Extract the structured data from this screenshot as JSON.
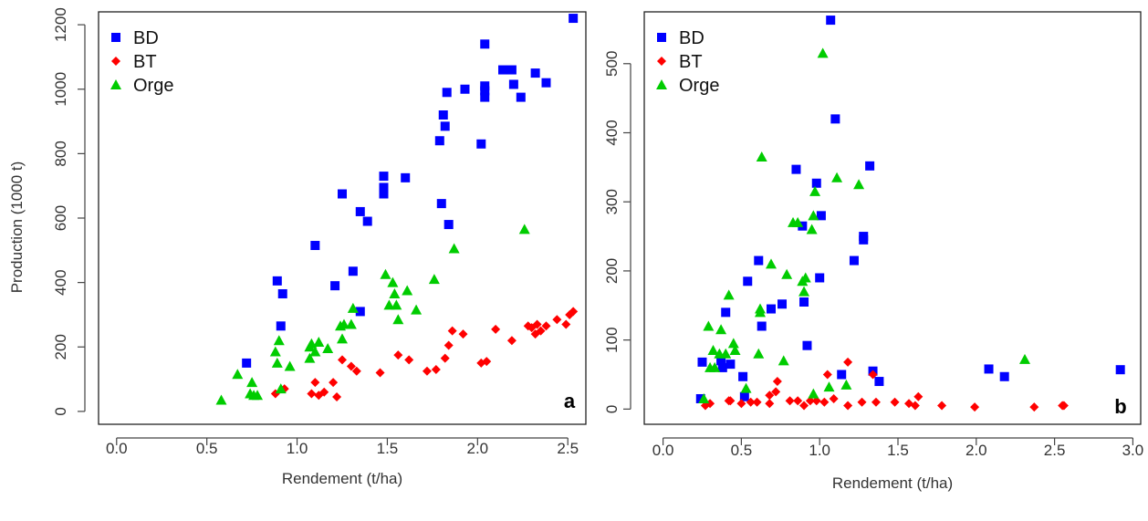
{
  "colors": {
    "BD": "#0000ff",
    "BT": "#ff0000",
    "Orge": "#00cc00"
  },
  "chart_data": [
    {
      "type": "scatter",
      "panel_label": "a",
      "xlabel": "Rendement (t/ha)",
      "ylabel": "Production (1000 t)",
      "xlim": [
        -0.1,
        2.6
      ],
      "ylim": [
        -40,
        1240
      ],
      "xticks": [
        0.0,
        0.5,
        1.0,
        1.5,
        2.0,
        2.5
      ],
      "xtick_labels": [
        "0.0",
        "0.5",
        "1.0",
        "1.5",
        "2.0",
        "2.5"
      ],
      "yticks": [
        0,
        200,
        400,
        600,
        800,
        1000,
        1200
      ],
      "ytick_labels": [
        "0",
        "200",
        "400",
        "600",
        "800",
        "1000",
        "1200"
      ],
      "legend_position": "top-left",
      "grid": false,
      "series": [
        {
          "name": "BD",
          "marker": "square",
          "points": [
            [
              0.72,
              150
            ],
            [
              0.89,
              405
            ],
            [
              0.91,
              265
            ],
            [
              0.92,
              365
            ],
            [
              1.1,
              515
            ],
            [
              1.21,
              390
            ],
            [
              1.25,
              675
            ],
            [
              1.31,
              435
            ],
            [
              1.35,
              620
            ],
            [
              1.35,
              310
            ],
            [
              1.39,
              590
            ],
            [
              1.48,
              730
            ],
            [
              1.48,
              695
            ],
            [
              1.48,
              675
            ],
            [
              1.6,
              725
            ],
            [
              1.79,
              840
            ],
            [
              1.8,
              645
            ],
            [
              1.81,
              920
            ],
            [
              1.82,
              885
            ],
            [
              1.83,
              990
            ],
            [
              1.84,
              580
            ],
            [
              1.93,
              1000
            ],
            [
              2.02,
              830
            ],
            [
              2.04,
              1140
            ],
            [
              2.04,
              1010
            ],
            [
              2.04,
              995
            ],
            [
              2.04,
              975
            ],
            [
              2.14,
              1060
            ],
            [
              2.19,
              1060
            ],
            [
              2.2,
              1015
            ],
            [
              2.24,
              975
            ],
            [
              2.32,
              1050
            ],
            [
              2.38,
              1020
            ],
            [
              2.53,
              1220
            ]
          ]
        },
        {
          "name": "BT",
          "marker": "diamond",
          "points": [
            [
              0.88,
              55
            ],
            [
              0.93,
              70
            ],
            [
              1.08,
              55
            ],
            [
              1.1,
              90
            ],
            [
              1.12,
              50
            ],
            [
              1.15,
              60
            ],
            [
              1.2,
              90
            ],
            [
              1.22,
              45
            ],
            [
              1.25,
              160
            ],
            [
              1.3,
              140
            ],
            [
              1.33,
              125
            ],
            [
              1.46,
              120
            ],
            [
              1.56,
              175
            ],
            [
              1.62,
              160
            ],
            [
              1.72,
              125
            ],
            [
              1.77,
              130
            ],
            [
              1.82,
              165
            ],
            [
              1.84,
              205
            ],
            [
              1.86,
              250
            ],
            [
              1.92,
              240
            ],
            [
              2.02,
              150
            ],
            [
              2.05,
              155
            ],
            [
              2.1,
              255
            ],
            [
              2.19,
              220
            ],
            [
              2.28,
              265
            ],
            [
              2.3,
              260
            ],
            [
              2.32,
              240
            ],
            [
              2.33,
              270
            ],
            [
              2.35,
              250
            ],
            [
              2.38,
              265
            ],
            [
              2.44,
              285
            ],
            [
              2.49,
              270
            ],
            [
              2.51,
              300
            ],
            [
              2.53,
              310
            ]
          ]
        },
        {
          "name": "Orge",
          "marker": "triangle",
          "points": [
            [
              0.58,
              35
            ],
            [
              0.67,
              115
            ],
            [
              0.74,
              55
            ],
            [
              0.75,
              90
            ],
            [
              0.76,
              50
            ],
            [
              0.78,
              50
            ],
            [
              0.88,
              185
            ],
            [
              0.89,
              150
            ],
            [
              0.9,
              220
            ],
            [
              0.91,
              70
            ],
            [
              0.96,
              140
            ],
            [
              1.07,
              200
            ],
            [
              1.07,
              165
            ],
            [
              1.08,
              210
            ],
            [
              1.1,
              185
            ],
            [
              1.12,
              215
            ],
            [
              1.17,
              195
            ],
            [
              1.24,
              265
            ],
            [
              1.25,
              225
            ],
            [
              1.26,
              270
            ],
            [
              1.3,
              270
            ],
            [
              1.31,
              320
            ],
            [
              1.49,
              425
            ],
            [
              1.51,
              330
            ],
            [
              1.53,
              400
            ],
            [
              1.54,
              365
            ],
            [
              1.55,
              330
            ],
            [
              1.56,
              285
            ],
            [
              1.61,
              375
            ],
            [
              1.66,
              315
            ],
            [
              1.76,
              410
            ],
            [
              1.87,
              505
            ],
            [
              2.26,
              565
            ]
          ]
        }
      ]
    },
    {
      "type": "scatter",
      "panel_label": "b",
      "xlabel": "Rendement (t/ha)",
      "ylabel": "",
      "xlim": [
        -0.12,
        3.05
      ],
      "ylim": [
        -22,
        575
      ],
      "xticks": [
        0.0,
        0.5,
        1.0,
        1.5,
        2.0,
        2.5,
        3.0
      ],
      "xtick_labels": [
        "0.0",
        "0.5",
        "1.0",
        "1.5",
        "2.0",
        "2.5",
        "3.0"
      ],
      "yticks": [
        0,
        100,
        200,
        300,
        400,
        500
      ],
      "ytick_labels": [
        "0",
        "100",
        "200",
        "300",
        "400",
        "500"
      ],
      "legend_position": "top-left",
      "grid": false,
      "series": [
        {
          "name": "BD",
          "marker": "square",
          "points": [
            [
              0.24,
              15
            ],
            [
              0.25,
              68
            ],
            [
              0.37,
              70
            ],
            [
              0.38,
              60
            ],
            [
              0.4,
              140
            ],
            [
              0.43,
              65
            ],
            [
              0.51,
              47
            ],
            [
              0.52,
              18
            ],
            [
              0.54,
              185
            ],
            [
              0.61,
              215
            ],
            [
              0.63,
              120
            ],
            [
              0.69,
              145
            ],
            [
              0.76,
              152
            ],
            [
              0.85,
              347
            ],
            [
              0.89,
              265
            ],
            [
              0.9,
              155
            ],
            [
              0.92,
              92
            ],
            [
              0.98,
              327
            ],
            [
              1.0,
              190
            ],
            [
              1.01,
              280
            ],
            [
              1.07,
              563
            ],
            [
              1.1,
              420
            ],
            [
              1.14,
              50
            ],
            [
              1.22,
              215
            ],
            [
              1.28,
              250
            ],
            [
              1.28,
              245
            ],
            [
              1.32,
              352
            ],
            [
              1.34,
              55
            ],
            [
              1.38,
              40
            ],
            [
              2.08,
              58
            ],
            [
              2.18,
              47
            ],
            [
              2.92,
              57
            ]
          ]
        },
        {
          "name": "BT",
          "marker": "diamond",
          "points": [
            [
              0.27,
              5
            ],
            [
              0.3,
              8
            ],
            [
              0.42,
              12
            ],
            [
              0.43,
              12
            ],
            [
              0.5,
              8
            ],
            [
              0.56,
              10
            ],
            [
              0.6,
              10
            ],
            [
              0.68,
              20
            ],
            [
              0.68,
              8
            ],
            [
              0.72,
              25
            ],
            [
              0.73,
              40
            ],
            [
              0.81,
              12
            ],
            [
              0.86,
              12
            ],
            [
              0.9,
              5
            ],
            [
              0.94,
              12
            ],
            [
              0.98,
              12
            ],
            [
              1.03,
              10
            ],
            [
              1.05,
              50
            ],
            [
              1.09,
              15
            ],
            [
              1.18,
              68
            ],
            [
              1.18,
              5
            ],
            [
              1.27,
              10
            ],
            [
              1.34,
              50
            ],
            [
              1.36,
              10
            ],
            [
              1.48,
              10
            ],
            [
              1.57,
              8
            ],
            [
              1.61,
              5
            ],
            [
              1.63,
              18
            ],
            [
              1.78,
              5
            ],
            [
              1.99,
              3
            ],
            [
              2.37,
              3
            ],
            [
              2.55,
              5
            ],
            [
              2.56,
              5
            ]
          ]
        },
        {
          "name": "Orge",
          "marker": "triangle",
          "points": [
            [
              0.26,
              15
            ],
            [
              0.29,
              120
            ],
            [
              0.3,
              60
            ],
            [
              0.32,
              85
            ],
            [
              0.33,
              60
            ],
            [
              0.36,
              80
            ],
            [
              0.37,
              115
            ],
            [
              0.4,
              80
            ],
            [
              0.42,
              165
            ],
            [
              0.45,
              95
            ],
            [
              0.46,
              85
            ],
            [
              0.53,
              30
            ],
            [
              0.61,
              80
            ],
            [
              0.62,
              140
            ],
            [
              0.62,
              145
            ],
            [
              0.63,
              365
            ],
            [
              0.69,
              210
            ],
            [
              0.77,
              70
            ],
            [
              0.79,
              195
            ],
            [
              0.83,
              270
            ],
            [
              0.86,
              270
            ],
            [
              0.89,
              185
            ],
            [
              0.9,
              170
            ],
            [
              0.91,
              190
            ],
            [
              0.95,
              260
            ],
            [
              0.96,
              280
            ],
            [
              0.97,
              315
            ],
            [
              0.96,
              22
            ],
            [
              1.02,
              515
            ],
            [
              1.06,
              32
            ],
            [
              1.11,
              335
            ],
            [
              1.17,
              35
            ],
            [
              1.25,
              325
            ],
            [
              2.31,
              72
            ]
          ]
        }
      ]
    }
  ]
}
